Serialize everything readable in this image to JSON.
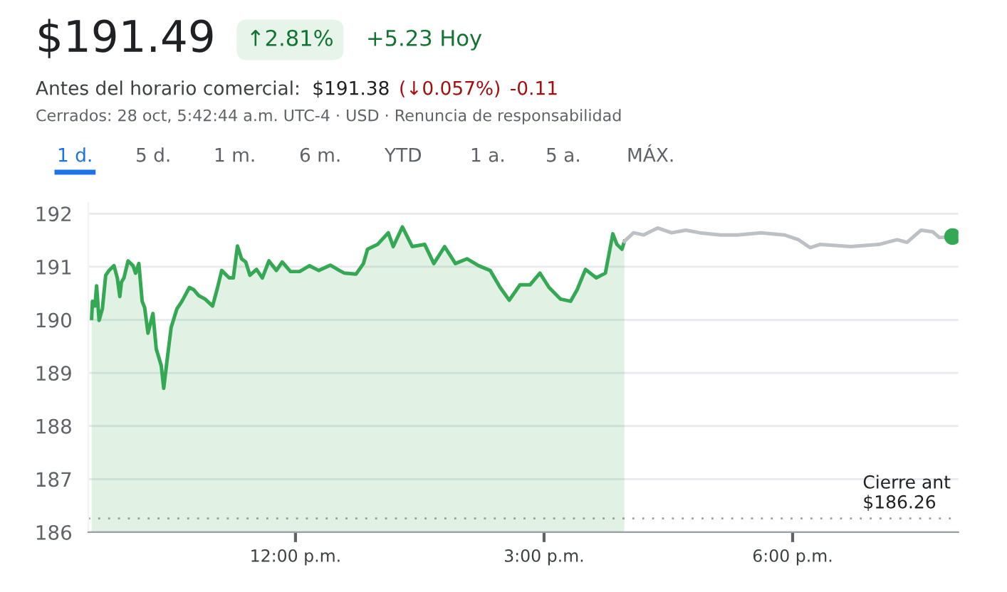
{
  "chart_data": {
    "type": "line",
    "title": "$191.49",
    "annotations": [
      "↑2.81%",
      "+5.23 Hoy",
      "Antes del horario comercial:",
      "$191.38",
      "(↓0.057%)",
      "-0.11",
      "Cerrados: 28 oct, 5:42:44 a.m. UTC-4 · USD · Renuncia de responsabilidad",
      "1 d.",
      "5 d.",
      "1 m.",
      "6 m.",
      "YTD",
      "1 a.",
      "5 a.",
      "MÁX."
    ],
    "xlim": [
      9.5,
      20
    ],
    "xticks": [
      {
        "value": 12,
        "label": "12:00 p.m."
      },
      {
        "value": 15,
        "label": "3:00 p.m."
      },
      {
        "value": 18,
        "label": "6:00 p.m."
      }
    ],
    "ylim": [
      186,
      192.2
    ],
    "yticks": [
      186,
      187,
      188,
      189,
      190,
      191,
      192
    ],
    "grid": "y",
    "ref_lines": [
      {
        "axis": "y",
        "value": 186.26,
        "label": "Cierre ant\n$186.26",
        "color": "#9aa0a6",
        "line_style": "dotted"
      }
    ],
    "series": [
      {
        "type": "area",
        "color": "#34a853",
        "x": [
          9.54,
          9.55,
          9.58,
          9.6,
          9.63,
          9.67,
          9.71,
          9.75,
          9.81,
          9.85,
          9.88,
          9.9,
          9.93,
          9.98,
          10.04,
          10.07,
          10.11,
          10.15,
          10.18,
          10.22,
          10.28,
          10.32,
          10.38,
          10.41,
          10.46,
          10.5,
          10.57,
          10.63,
          10.72,
          10.77,
          10.83,
          10.91,
          11.0,
          11.06,
          11.11,
          11.2,
          11.25,
          11.3,
          11.35,
          11.4,
          11.45,
          11.53,
          11.6,
          11.68,
          11.77,
          11.84,
          11.94,
          12.05,
          12.17,
          12.28,
          12.42,
          12.53,
          12.59,
          12.73,
          12.82,
          12.87,
          12.99,
          13.12,
          13.18,
          13.29,
          13.41,
          13.56,
          13.67,
          13.8,
          13.93,
          14.07,
          14.21,
          14.35,
          14.47,
          14.58,
          14.71,
          14.83,
          14.95,
          15.06,
          15.2,
          15.32,
          15.4,
          15.5,
          15.63,
          15.74,
          15.83,
          15.88,
          15.94,
          15.97
        ],
        "values": [
          190.03,
          190.35,
          190.26,
          190.64,
          189.99,
          190.21,
          190.84,
          190.93,
          191.02,
          190.79,
          190.44,
          190.71,
          190.79,
          191.11,
          191.02,
          190.88,
          191.06,
          190.35,
          190.23,
          189.75,
          190.12,
          189.45,
          189.14,
          188.71,
          189.36,
          189.86,
          190.21,
          190.35,
          190.61,
          190.57,
          190.46,
          190.39,
          190.26,
          190.61,
          190.93,
          190.79,
          190.79,
          191.39,
          191.15,
          191.09,
          190.84,
          190.95,
          190.79,
          191.11,
          190.93,
          191.09,
          190.91,
          190.91,
          191.02,
          190.93,
          191.03,
          190.93,
          190.88,
          190.86,
          191.06,
          191.33,
          191.42,
          191.64,
          191.38,
          191.75,
          191.38,
          191.42,
          191.06,
          191.38,
          191.06,
          191.15,
          191.02,
          190.93,
          190.61,
          190.37,
          190.66,
          190.66,
          190.88,
          190.61,
          190.39,
          190.35,
          190.57,
          190.95,
          190.79,
          190.88,
          191.62,
          191.42,
          191.33,
          191.48
        ]
      },
      {
        "color": "#bdc1c6",
        "x": [
          15.97,
          16.08,
          16.2,
          16.37,
          16.54,
          16.71,
          16.88,
          17.13,
          17.33,
          17.62,
          17.9,
          18.07,
          18.21,
          18.33,
          18.7,
          19.04,
          19.26,
          19.38,
          19.55,
          19.69,
          19.77,
          19.93
        ],
        "values": [
          191.48,
          191.64,
          191.6,
          191.73,
          191.64,
          191.69,
          191.64,
          191.6,
          191.6,
          191.64,
          191.6,
          191.51,
          191.36,
          191.42,
          191.38,
          191.42,
          191.51,
          191.46,
          191.69,
          191.66,
          191.55,
          191.57
        ]
      },
      {
        "type": "scatter",
        "color": "#34a853",
        "x": [
          19.93
        ],
        "values": [
          191.57
        ]
      }
    ]
  }
}
